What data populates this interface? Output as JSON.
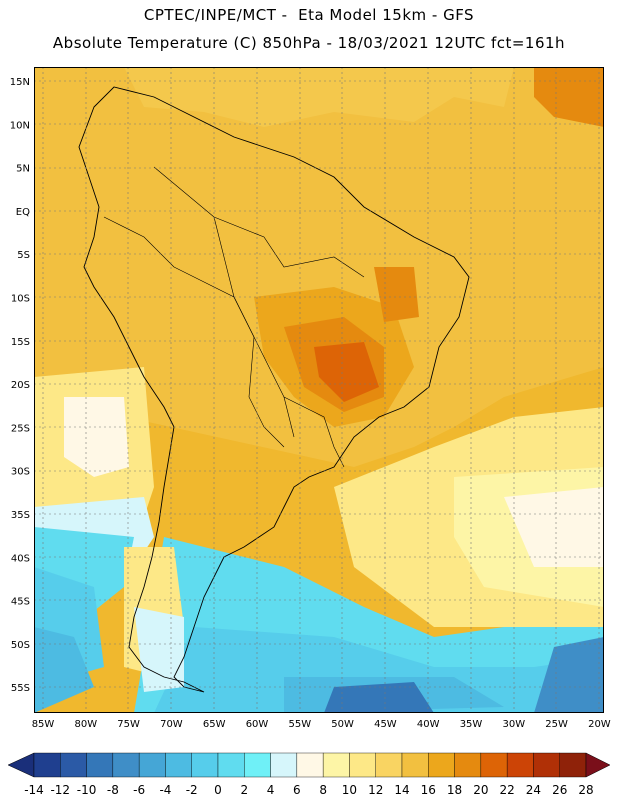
{
  "header": {
    "title_line1": "CPTEC/INPE/MCT -  Eta Model 15km - GFS",
    "title_line2": "Absolute Temperature (C) 850hPa - 18/03/2021 12UTC fct=161h"
  },
  "axes": {
    "lat_labels": [
      "15N",
      "10N",
      "5N",
      "EQ",
      "5S",
      "10S",
      "15S",
      "20S",
      "25S",
      "30S",
      "35S",
      "40S",
      "45S",
      "50S",
      "55S"
    ],
    "lon_labels": [
      "85W",
      "80W",
      "75W",
      "70W",
      "65W",
      "60W",
      "55W",
      "50W",
      "45W",
      "40W",
      "35W",
      "30W",
      "25W",
      "20W"
    ]
  },
  "colorbar": {
    "labels": [
      "-14",
      "-12",
      "-10",
      "-8",
      "-6",
      "-4",
      "-2",
      "0",
      "2",
      "4",
      "6",
      "8",
      "10",
      "12",
      "14",
      "16",
      "18",
      "20",
      "22",
      "24",
      "26",
      "28"
    ],
    "colors": [
      "#1f3f8f",
      "#2b5aa6",
      "#3477b8",
      "#3f8ec7",
      "#45a6d6",
      "#4dbbe2",
      "#56cdeb",
      "#60dcef",
      "#6ff0f7",
      "#d6f6fb",
      "#fff8e6",
      "#fdf5a6",
      "#fde887",
      "#f9d462",
      "#f2c040",
      "#eca71c",
      "#e58a0f",
      "#dd6406",
      "#cc4406",
      "#b03006",
      "#8f2209"
    ]
  }
}
